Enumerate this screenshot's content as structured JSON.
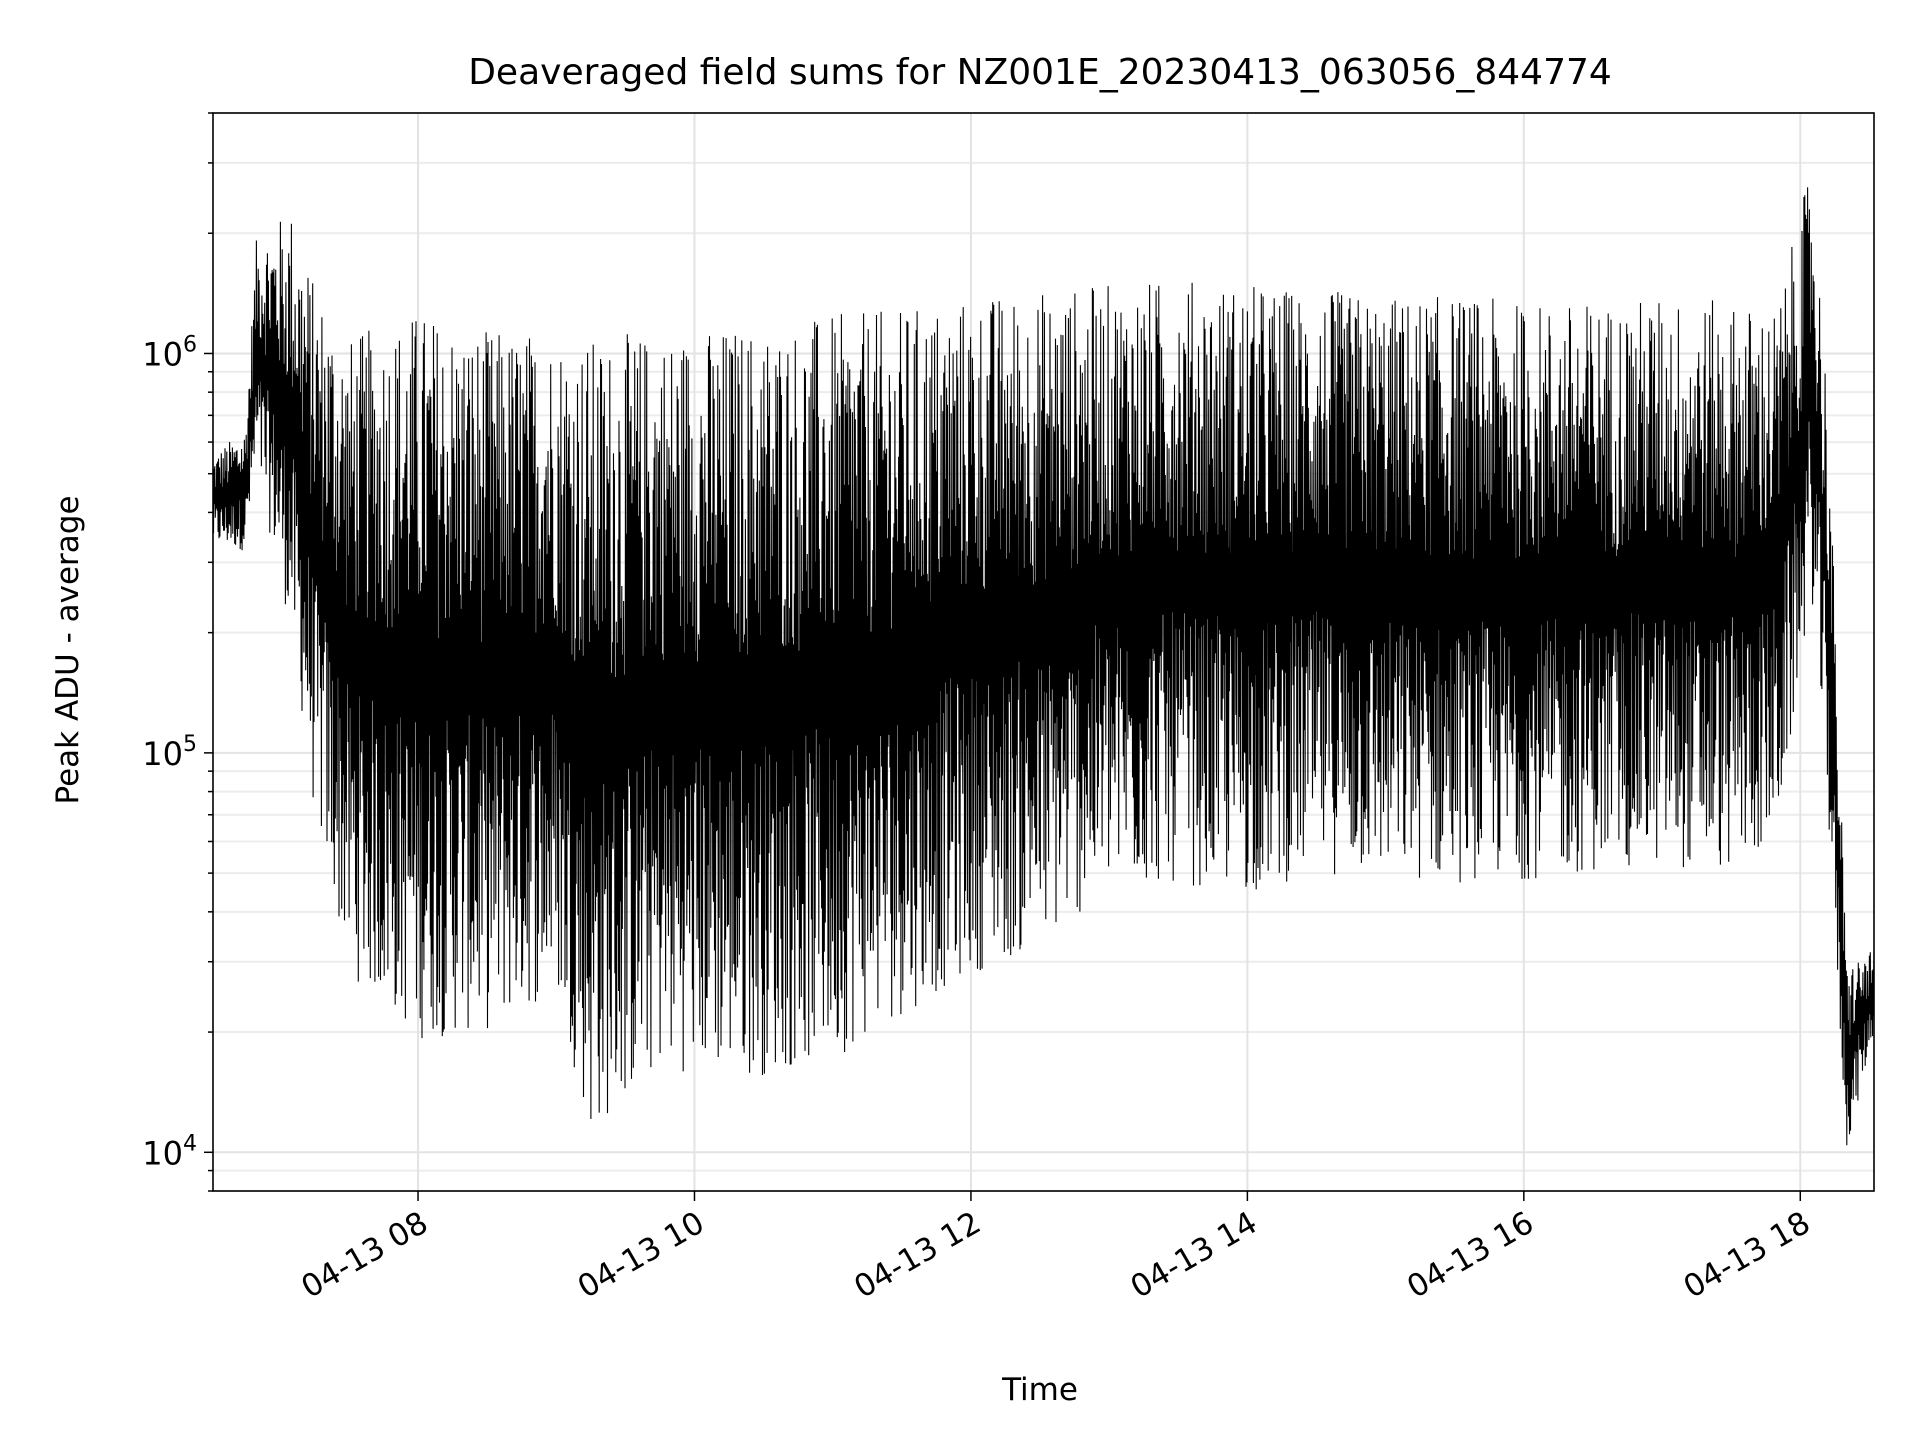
{
  "chart_data": {
    "type": "line",
    "title": "Deaveraged field sums for NZ001E_20230413_063056_844774",
    "xlabel": "Time",
    "ylabel": "Peak ADU - average",
    "yscale": "log",
    "ylim": [
      8000,
      4000000
    ],
    "xlim": [
      "2023-04-13 06:31",
      "2023-04-13 18:32"
    ],
    "grid": true,
    "line_color": "#000000",
    "x_ticks": [
      {
        "label": "04-13 08",
        "t": "2023-04-13 08:00"
      },
      {
        "label": "04-13 10",
        "t": "2023-04-13 10:00"
      },
      {
        "label": "04-13 12",
        "t": "2023-04-13 12:00"
      },
      {
        "label": "04-13 14",
        "t": "2023-04-13 14:00"
      },
      {
        "label": "04-13 16",
        "t": "2023-04-13 16:00"
      },
      {
        "label": "04-13 18",
        "t": "2023-04-13 18:00"
      }
    ],
    "y_ticks": [
      {
        "base": "10",
        "exp": "4",
        "value": 10000
      },
      {
        "base": "10",
        "exp": "5",
        "value": 100000
      },
      {
        "base": "10",
        "exp": "6",
        "value": 1000000
      }
    ],
    "series": [
      {
        "values_note_free": true,
        "envelope": [
          {
            "t": "2023-04-13 06:31",
            "low": 330000,
            "high": 560000
          },
          {
            "t": "2023-04-13 06:45",
            "low": 320000,
            "high": 650000
          },
          {
            "t": "2023-04-13 06:50",
            "low": 500000,
            "high": 2000000
          },
          {
            "t": "2023-04-13 07:05",
            "low": 200000,
            "high": 2300000
          },
          {
            "t": "2023-04-13 07:15",
            "low": 70000,
            "high": 1500000
          },
          {
            "t": "2023-04-13 07:30",
            "low": 28000,
            "high": 1100000
          },
          {
            "t": "2023-04-13 08:00",
            "low": 19000,
            "high": 1300000
          },
          {
            "t": "2023-04-13 08:30",
            "low": 20000,
            "high": 1150000
          },
          {
            "t": "2023-04-13 09:00",
            "low": 25000,
            "high": 1150000
          },
          {
            "t": "2023-04-13 09:15",
            "low": 11000,
            "high": 1100000
          },
          {
            "t": "2023-04-13 09:45",
            "low": 16000,
            "high": 1150000
          },
          {
            "t": "2023-04-13 10:30",
            "low": 15500,
            "high": 1200000
          },
          {
            "t": "2023-04-13 11:00",
            "low": 17000,
            "high": 1250000
          },
          {
            "t": "2023-04-13 11:30",
            "low": 22000,
            "high": 1300000
          },
          {
            "t": "2023-04-13 12:00",
            "low": 28000,
            "high": 1400000
          },
          {
            "t": "2023-04-13 12:30",
            "low": 32000,
            "high": 1450000
          },
          {
            "t": "2023-04-13 13:00",
            "low": 45000,
            "high": 1500000
          },
          {
            "t": "2023-04-13 13:30",
            "low": 47000,
            "high": 1550000
          },
          {
            "t": "2023-04-13 14:00",
            "low": 44000,
            "high": 1500000
          },
          {
            "t": "2023-04-13 14:30",
            "low": 50000,
            "high": 1450000
          },
          {
            "t": "2023-04-13 15:00",
            "low": 48000,
            "high": 1400000
          },
          {
            "t": "2023-04-13 15:30",
            "low": 47000,
            "high": 1400000
          },
          {
            "t": "2023-04-13 16:00",
            "low": 48000,
            "high": 1350000
          },
          {
            "t": "2023-04-13 16:30",
            "low": 50000,
            "high": 1350000
          },
          {
            "t": "2023-04-13 17:00",
            "low": 52000,
            "high": 1400000
          },
          {
            "t": "2023-04-13 17:30",
            "low": 50000,
            "high": 1350000
          },
          {
            "t": "2023-04-13 17:50",
            "low": 60000,
            "high": 1300000
          },
          {
            "t": "2023-04-13 18:05",
            "low": 250000,
            "high": 3000000
          },
          {
            "t": "2023-04-13 18:12",
            "low": 70000,
            "high": 800000
          },
          {
            "t": "2023-04-13 18:20",
            "low": 10000,
            "high": 30000
          },
          {
            "t": "2023-04-13 18:32",
            "low": 20000,
            "high": 32000
          }
        ]
      }
    ]
  }
}
